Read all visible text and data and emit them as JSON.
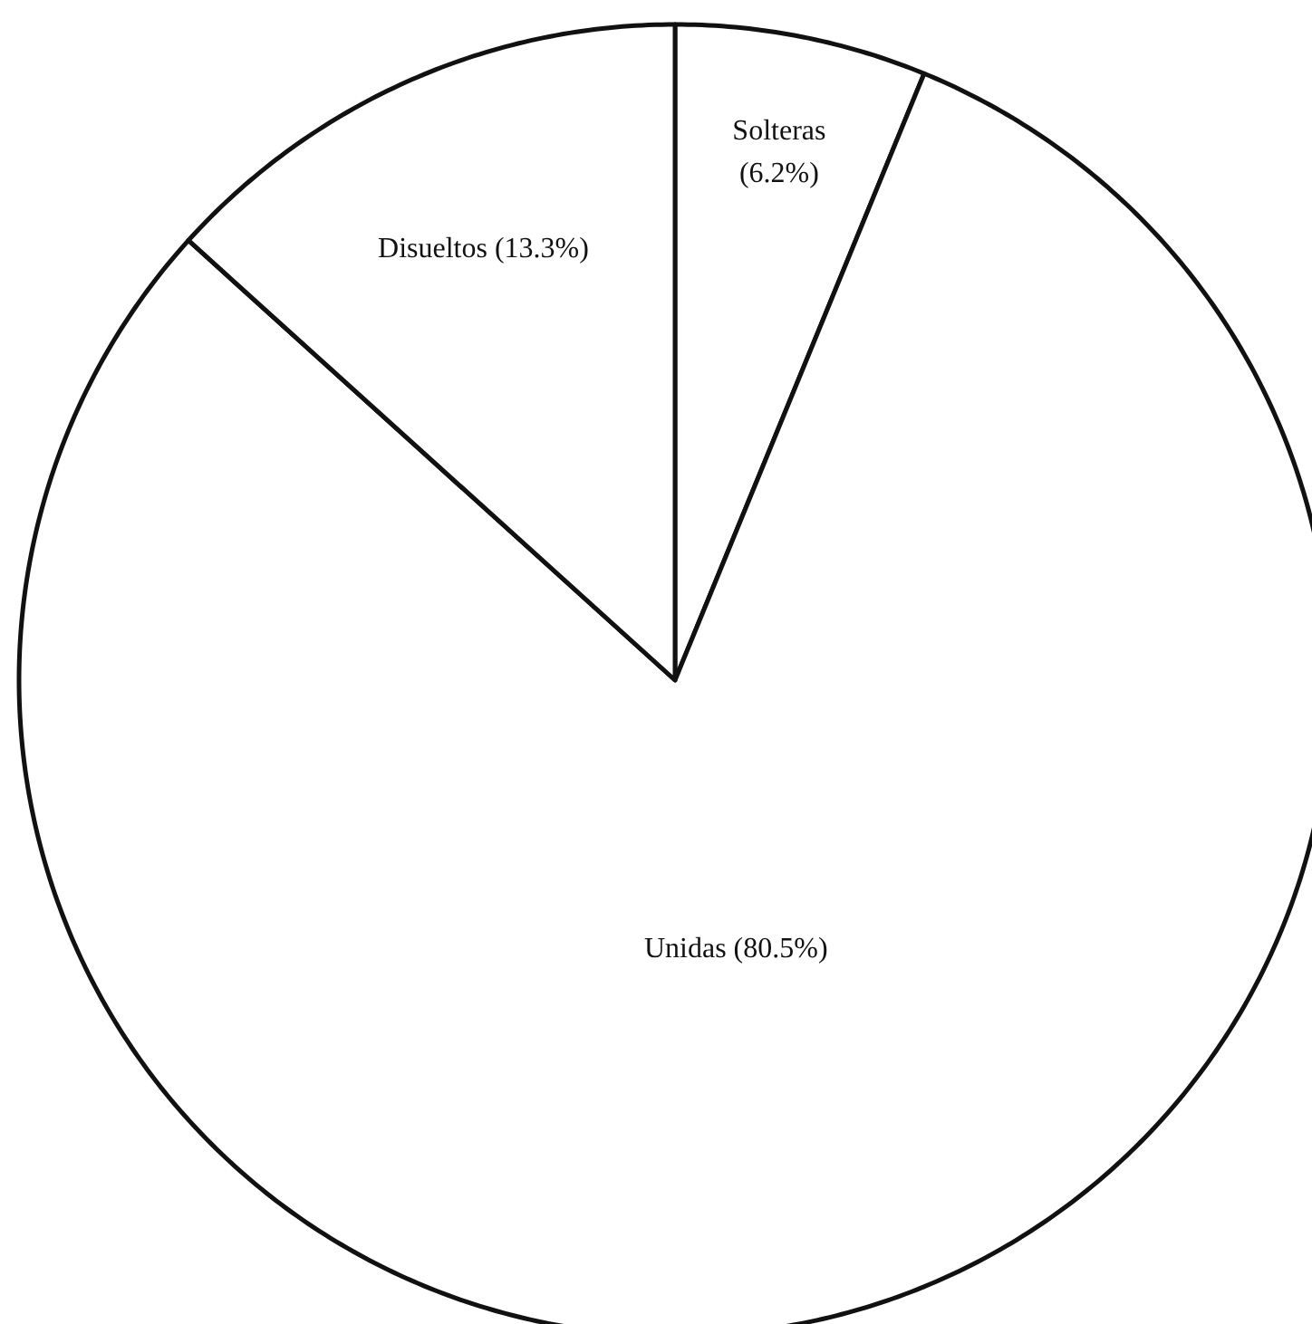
{
  "chart_data": {
    "type": "pie",
    "categories": [
      "Solteras",
      "Unidas",
      "Disueltos"
    ],
    "values": [
      6.2,
      80.5,
      13.3
    ],
    "colors": [
      "#ffffff",
      "#ffffff",
      "#ffffff"
    ],
    "value_labels": [
      "(6.2%)",
      "(80.5%)",
      "(13.3%)"
    ]
  }
}
